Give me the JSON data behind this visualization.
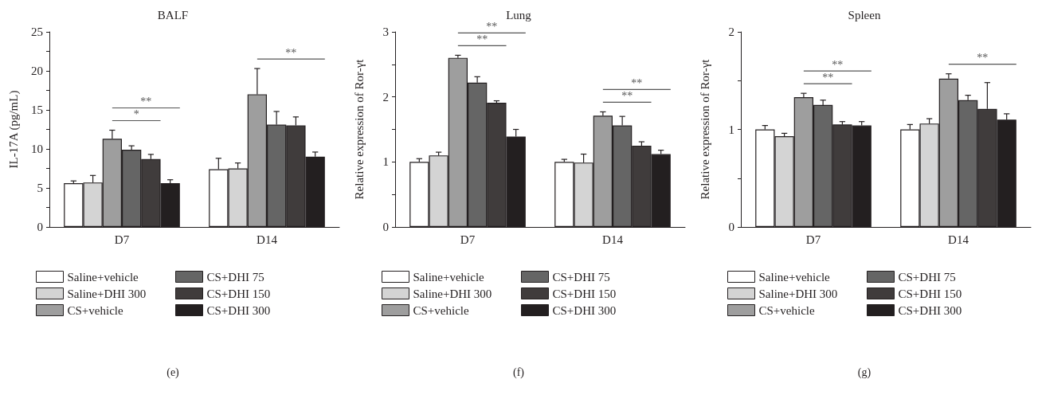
{
  "chart_data": [
    {
      "type": "bar",
      "title": "BALF",
      "ylabel": "IL-17A (pg/mL)",
      "categories": [
        "D7",
        "D14"
      ],
      "ylim": [
        0,
        25
      ],
      "yticks": [
        0,
        {
          "value": 2.5,
          "label": null
        },
        5,
        {
          "value": 7.5,
          "label": null
        },
        10,
        {
          "value": 12.5,
          "label": null
        },
        15,
        {
          "value": 17.5,
          "label": null
        },
        20,
        {
          "value": 22.5,
          "label": null
        },
        25
      ],
      "grid": false,
      "legend": "bottom",
      "series": [
        {
          "name": "Saline+vehicle",
          "color": "#ffffff",
          "values": [
            5.6,
            7.4
          ],
          "errors": [
            0.3,
            1.4
          ]
        },
        {
          "name": "Saline+DHI 300",
          "color": "#d4d4d4",
          "values": [
            5.7,
            7.5
          ],
          "errors": [
            0.9,
            0.7
          ]
        },
        {
          "name": "CS+vehicle",
          "color": "#9e9e9e",
          "values": [
            11.3,
            17.0
          ],
          "errors": [
            1.1,
            3.3
          ]
        },
        {
          "name": "CS+DHI 75",
          "color": "#656565",
          "values": [
            9.9,
            13.1
          ],
          "errors": [
            0.5,
            1.7
          ]
        },
        {
          "name": "CS+DHI 150",
          "color": "#403c3c",
          "values": [
            8.7,
            13.0
          ],
          "errors": [
            0.6,
            1.1
          ]
        },
        {
          "name": "CS+DHI 300",
          "color": "#231f20",
          "values": [
            5.6,
            9.0
          ],
          "errors": [
            0.45,
            0.6
          ]
        }
      ],
      "annotations": [
        "**",
        "*",
        "**",
        "(e)"
      ]
    },
    {
      "type": "bar",
      "title": "Lung",
      "ylabel": "Relative expression of Ror-γt",
      "categories": [
        "D7",
        "D14"
      ],
      "ylim": [
        0,
        3
      ],
      "yticks": [
        0,
        {
          "value": 0.5,
          "label": null
        },
        1,
        {
          "value": 1.5,
          "label": null
        },
        2,
        {
          "value": 2.5,
          "label": null
        },
        3
      ],
      "grid": false,
      "legend": "bottom",
      "series": [
        {
          "name": "Saline+vehicle",
          "color": "#ffffff",
          "values": [
            1.0,
            1.0
          ],
          "errors": [
            0.05,
            0.04
          ]
        },
        {
          "name": "Saline+DHI 300",
          "color": "#d4d4d4",
          "values": [
            1.1,
            0.99
          ],
          "errors": [
            0.05,
            0.13
          ]
        },
        {
          "name": "CS+vehicle",
          "color": "#9e9e9e",
          "values": [
            2.6,
            1.71
          ],
          "errors": [
            0.04,
            0.06
          ]
        },
        {
          "name": "CS+DHI 75",
          "color": "#656565",
          "values": [
            2.22,
            1.56
          ],
          "errors": [
            0.09,
            0.14
          ]
        },
        {
          "name": "CS+DHI 150",
          "color": "#403c3c",
          "values": [
            1.91,
            1.25
          ],
          "errors": [
            0.03,
            0.06
          ]
        },
        {
          "name": "CS+DHI 300",
          "color": "#231f20",
          "values": [
            1.39,
            1.12
          ],
          "errors": [
            0.11,
            0.06
          ]
        }
      ],
      "annotations": [
        "**",
        "**",
        "**",
        "**",
        "(f)"
      ]
    },
    {
      "type": "bar",
      "title": "Spleen",
      "ylabel": "Relative expression of Ror-γt",
      "categories": [
        "D7",
        "D14"
      ],
      "ylim": [
        0,
        2
      ],
      "yticks": [
        0,
        {
          "value": 0.5,
          "label": null
        },
        1,
        {
          "value": 1.5,
          "label": null
        },
        2
      ],
      "grid": false,
      "legend": "bottom",
      "series": [
        {
          "name": "Saline+vehicle",
          "color": "#ffffff",
          "values": [
            1.0,
            1.0
          ],
          "errors": [
            0.04,
            0.05
          ]
        },
        {
          "name": "Saline+DHI 300",
          "color": "#d4d4d4",
          "values": [
            0.93,
            1.06
          ],
          "errors": [
            0.03,
            0.05
          ]
        },
        {
          "name": "CS+vehicle",
          "color": "#9e9e9e",
          "values": [
            1.33,
            1.52
          ],
          "errors": [
            0.04,
            0.05
          ]
        },
        {
          "name": "CS+DHI 75",
          "color": "#656565",
          "values": [
            1.25,
            1.3
          ],
          "errors": [
            0.05,
            0.05
          ]
        },
        {
          "name": "CS+DHI 150",
          "color": "#403c3c",
          "values": [
            1.05,
            1.21
          ],
          "errors": [
            0.03,
            0.27
          ]
        },
        {
          "name": "CS+DHI 300",
          "color": "#231f20",
          "values": [
            1.04,
            1.1
          ],
          "errors": [
            0.04,
            0.06
          ]
        }
      ],
      "annotations": [
        "**",
        "**",
        "**",
        "(g)"
      ]
    }
  ]
}
